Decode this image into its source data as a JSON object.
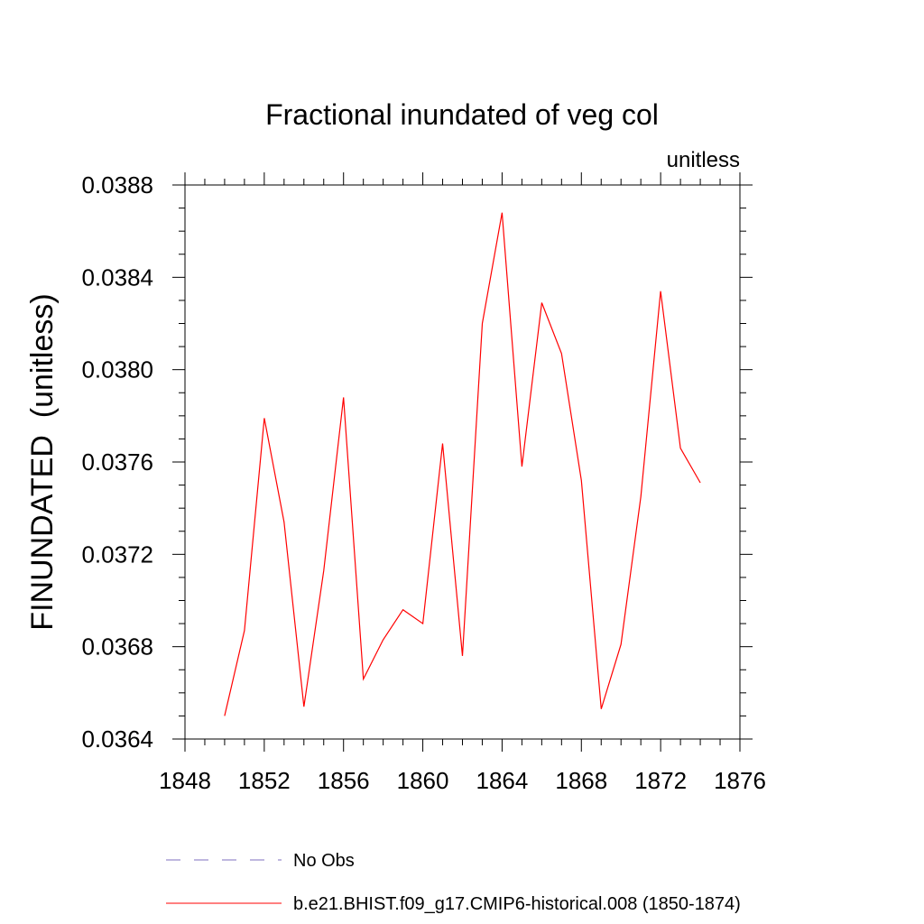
{
  "chart_data": {
    "type": "line",
    "title": "Fractional inundated of veg col",
    "units_label": "unitless",
    "ylabel": "FINUNDATED  (unitless)",
    "xlabel": "",
    "xlim": [
      1848,
      1876
    ],
    "ylim": [
      0.0364,
      0.0388
    ],
    "x_ticks": [
      "1848",
      "1852",
      "1856",
      "1860",
      "1864",
      "1868",
      "1872",
      "1876"
    ],
    "y_ticks": [
      "0.0364",
      "0.0368",
      "0.0372",
      "0.0376",
      "0.0380",
      "0.0384",
      "0.0388"
    ],
    "grid": false,
    "legend_position": "bottom",
    "series": [
      {
        "name": "b.e21.BHIST.f09_g17.CMIP6-historical.008 (1850-1874)",
        "color": "#ff0000",
        "x": [
          1850,
          1851,
          1852,
          1853,
          1854,
          1855,
          1856,
          1857,
          1858,
          1859,
          1860,
          1861,
          1862,
          1863,
          1864,
          1865,
          1866,
          1867,
          1868,
          1869,
          1870,
          1871,
          1872,
          1873,
          1874
        ],
        "y": [
          0.0365,
          0.03687,
          0.03779,
          0.03734,
          0.03654,
          0.03713,
          0.03788,
          0.03666,
          0.03683,
          0.03696,
          0.0369,
          0.03768,
          0.03676,
          0.0382,
          0.03868,
          0.03758,
          0.03829,
          0.03807,
          0.03752,
          0.03653,
          0.03681,
          0.03745,
          0.03834,
          0.03766,
          0.03751
        ]
      }
    ],
    "legend": [
      {
        "label": "No Obs",
        "color": "#7f6fbf",
        "style": "dashed"
      },
      {
        "label": "b.e21.BHIST.f09_g17.CMIP6-historical.008 (1850-1874)",
        "color": "#ff0000",
        "style": "solid"
      }
    ]
  }
}
